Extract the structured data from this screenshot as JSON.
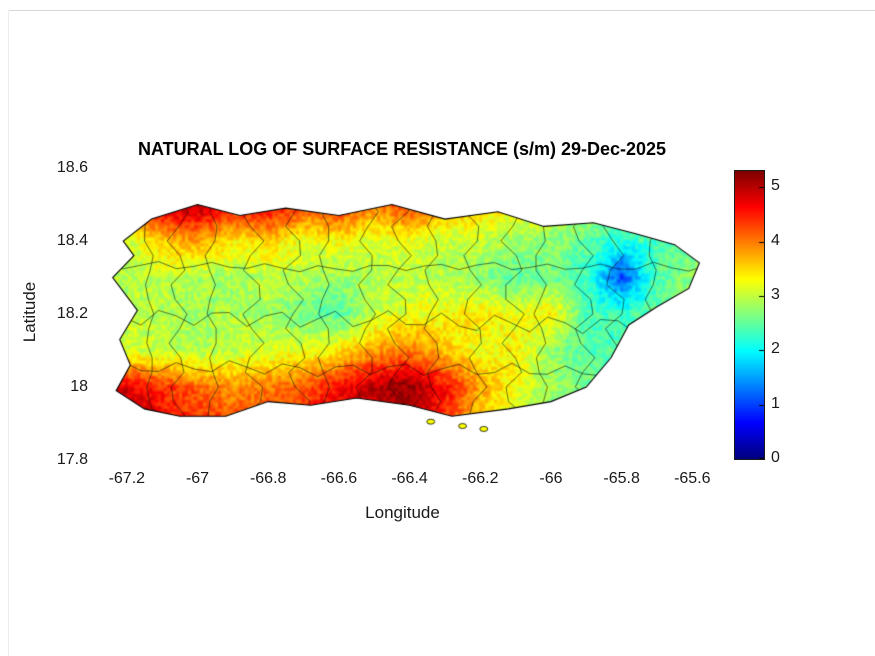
{
  "figure": {
    "title": "NATURAL LOG OF SURFACE RESISTANCE (s/m) 29-Dec-2025"
  },
  "axes": {
    "xlabel": "Longitude",
    "ylabel": "Latitude",
    "x_ticks": [
      {
        "value": -67.2,
        "label": "-67.2"
      },
      {
        "value": -67.0,
        "label": "-67"
      },
      {
        "value": -66.8,
        "label": "-66.8"
      },
      {
        "value": -66.6,
        "label": "-66.6"
      },
      {
        "value": -66.4,
        "label": "-66.4"
      },
      {
        "value": -66.2,
        "label": "-66.2"
      },
      {
        "value": -66.0,
        "label": "-66"
      },
      {
        "value": -65.8,
        "label": "-65.8"
      },
      {
        "value": -65.6,
        "label": "-65.6"
      }
    ],
    "y_ticks": [
      {
        "value": 18.6,
        "label": "18.6"
      },
      {
        "value": 18.4,
        "label": "18.4"
      },
      {
        "value": 18.2,
        "label": "18.2"
      },
      {
        "value": 18.0,
        "label": "18"
      },
      {
        "value": 17.8,
        "label": "17.8"
      }
    ]
  },
  "colorbar": {
    "colormap": "jet",
    "clim": [
      0,
      5.3
    ],
    "ticks": [
      {
        "value": 5,
        "label": "5"
      },
      {
        "value": 4,
        "label": "4"
      },
      {
        "value": 3,
        "label": "3"
      },
      {
        "value": 2,
        "label": "2"
      },
      {
        "value": 1,
        "label": "1"
      },
      {
        "value": 0,
        "label": "0"
      }
    ]
  },
  "chart_data": {
    "type": "heatmap",
    "title": "NATURAL LOG OF SURFACE RESISTANCE (s/m) 29-Dec-2025",
    "xlabel": "Longitude",
    "ylabel": "Latitude",
    "region": "Puerto Rico municipalities map",
    "xlim": [
      -67.29,
      -65.55
    ],
    "ylim": [
      17.8,
      18.6
    ],
    "colormap": "jet",
    "clim": [
      0,
      5.3
    ],
    "colorbar_ticks": [
      0,
      1,
      2,
      3,
      4,
      5
    ],
    "grid": {
      "lon0": -67.2,
      "dlon": 0.1,
      "lat0": 18.5,
      "dlat": -0.1,
      "values": [
        [
          4.0,
          5.0,
          5.1,
          4.6,
          4.8,
          4.3,
          4.5,
          4.0,
          4.4,
          3.8,
          3.6,
          3.4,
          3.2,
          2.9,
          2.7,
          2.6,
          2.7
        ],
        [
          3.0,
          3.6,
          3.8,
          3.4,
          3.5,
          3.2,
          3.3,
          3.1,
          3.2,
          3.0,
          3.0,
          2.8,
          2.7,
          2.5,
          2.1,
          2.4,
          2.6
        ],
        [
          2.9,
          3.0,
          2.9,
          2.8,
          3.0,
          2.9,
          2.8,
          2.9,
          3.0,
          2.9,
          2.7,
          2.5,
          2.6,
          2.3,
          1.0,
          2.4,
          2.8
        ],
        [
          3.0,
          2.9,
          2.8,
          2.9,
          2.8,
          2.6,
          2.4,
          3.0,
          3.2,
          3.3,
          3.4,
          3.2,
          3.4,
          2.4,
          2.3,
          2.5,
          2.7
        ],
        [
          3.1,
          3.0,
          2.9,
          3.0,
          3.1,
          3.2,
          3.4,
          3.8,
          4.0,
          3.6,
          3.2,
          3.4,
          2.8,
          2.4,
          2.4,
          2.5,
          2.6
        ],
        [
          4.8,
          4.4,
          4.1,
          3.9,
          4.0,
          4.2,
          4.6,
          5.0,
          5.2,
          4.6,
          3.8,
          3.2,
          2.8,
          2.6,
          2.7,
          2.8,
          2.9
        ],
        [
          5.1,
          4.7,
          4.4,
          4.2,
          4.3,
          4.4,
          4.7,
          4.9,
          5.0,
          4.4,
          3.5,
          3.0,
          2.8,
          2.7,
          2.8,
          2.9,
          3.0
        ]
      ]
    },
    "island_outline": [
      [
        -67.18,
        18.36
      ],
      [
        -67.21,
        18.4
      ],
      [
        -67.13,
        18.46
      ],
      [
        -67.0,
        18.5
      ],
      [
        -66.88,
        18.47
      ],
      [
        -66.75,
        18.49
      ],
      [
        -66.6,
        18.47
      ],
      [
        -66.45,
        18.5
      ],
      [
        -66.3,
        18.46
      ],
      [
        -66.15,
        18.48
      ],
      [
        -66.02,
        18.44
      ],
      [
        -65.88,
        18.45
      ],
      [
        -65.76,
        18.42
      ],
      [
        -65.65,
        18.39
      ],
      [
        -65.58,
        18.34
      ],
      [
        -65.61,
        18.27
      ],
      [
        -65.7,
        18.22
      ],
      [
        -65.78,
        18.17
      ],
      [
        -65.83,
        18.08
      ],
      [
        -65.9,
        18.0
      ],
      [
        -66.0,
        17.96
      ],
      [
        -66.12,
        17.94
      ],
      [
        -66.28,
        17.92
      ],
      [
        -66.4,
        17.95
      ],
      [
        -66.55,
        17.97
      ],
      [
        -66.68,
        17.95
      ],
      [
        -66.8,
        17.96
      ],
      [
        -66.92,
        17.92
      ],
      [
        -67.05,
        17.92
      ],
      [
        -67.15,
        17.94
      ],
      [
        -67.23,
        17.99
      ],
      [
        -67.19,
        18.06
      ],
      [
        -67.22,
        18.13
      ],
      [
        -67.17,
        18.21
      ],
      [
        -67.24,
        18.3
      ]
    ],
    "islets": [
      [
        -66.34,
        17.905
      ],
      [
        -66.25,
        17.893
      ],
      [
        -66.19,
        17.885
      ]
    ]
  }
}
